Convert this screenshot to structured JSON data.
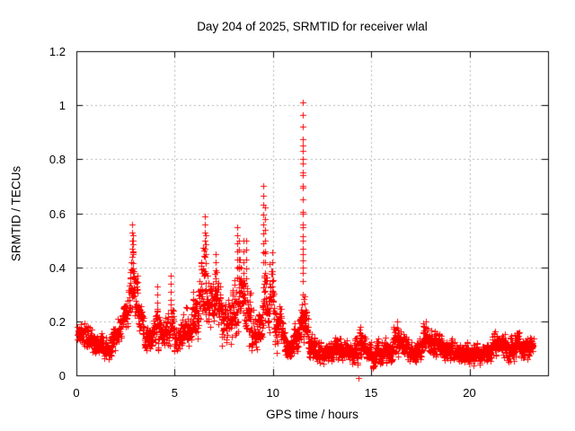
{
  "chart_data": {
    "type": "scatter",
    "title": "Day 204 of 2025, SRMTID for receiver wlal",
    "xlabel": "GPS time / hours",
    "ylabel": "SRMTID / TECUs",
    "xlim": [
      0,
      24
    ],
    "ylim": [
      0,
      1.2
    ],
    "xticks": [
      {
        "label": "0",
        "v": 0
      },
      {
        "label": "5",
        "v": 5
      },
      {
        "label": "10",
        "v": 10
      },
      {
        "label": "15",
        "v": 15
      },
      {
        "label": "20",
        "v": 20
      }
    ],
    "yticks": [
      {
        "label": "0",
        "v": 0
      },
      {
        "label": "0.2",
        "v": 0.2
      },
      {
        "label": "0.4",
        "v": 0.4
      },
      {
        "label": "0.6",
        "v": 0.6
      },
      {
        "label": "0.8",
        "v": 0.8
      },
      {
        "label": "1",
        "v": 1
      },
      {
        "label": "1.2",
        "v": 1.2
      }
    ],
    "grid": true,
    "legend": "none",
    "marker": "+",
    "colors": {
      "points": "#ff0000",
      "grid": "#b3b3b3",
      "axis": "#000000",
      "background": "#ffffff",
      "text": "#000000"
    },
    "sampling": {
      "samples_per_hour": 120,
      "time_start": 0.05,
      "time_end": 23.25,
      "seed": 2025204
    },
    "band_envelope": [
      [
        0.0,
        0.17,
        0.045
      ],
      [
        0.3,
        0.16,
        0.05
      ],
      [
        0.7,
        0.13,
        0.05
      ],
      [
        1.0,
        0.11,
        0.045
      ],
      [
        1.3,
        0.13,
        0.05
      ],
      [
        1.6,
        0.09,
        0.04
      ],
      [
        1.9,
        0.13,
        0.055
      ],
      [
        2.2,
        0.17,
        0.06
      ],
      [
        2.5,
        0.21,
        0.07
      ],
      [
        2.75,
        0.3,
        0.12
      ],
      [
        2.9,
        0.36,
        0.16
      ],
      [
        3.05,
        0.27,
        0.1
      ],
      [
        3.3,
        0.21,
        0.07
      ],
      [
        3.6,
        0.14,
        0.05
      ],
      [
        3.9,
        0.15,
        0.055
      ],
      [
        4.1,
        0.19,
        0.09
      ],
      [
        4.35,
        0.14,
        0.05
      ],
      [
        4.6,
        0.16,
        0.07
      ],
      [
        4.8,
        0.24,
        0.11
      ],
      [
        5.0,
        0.16,
        0.07
      ],
      [
        5.25,
        0.13,
        0.05
      ],
      [
        5.5,
        0.19,
        0.09
      ],
      [
        5.75,
        0.15,
        0.06
      ],
      [
        5.95,
        0.2,
        0.09
      ],
      [
        6.2,
        0.24,
        0.1
      ],
      [
        6.5,
        0.34,
        0.17
      ],
      [
        6.7,
        0.3,
        0.12
      ],
      [
        6.9,
        0.3,
        0.11
      ],
      [
        7.1,
        0.28,
        0.13
      ],
      [
        7.35,
        0.23,
        0.1
      ],
      [
        7.6,
        0.2,
        0.09
      ],
      [
        7.85,
        0.21,
        0.1
      ],
      [
        8.1,
        0.28,
        0.14
      ],
      [
        8.3,
        0.3,
        0.13
      ],
      [
        8.5,
        0.3,
        0.14
      ],
      [
        8.7,
        0.26,
        0.14
      ],
      [
        8.95,
        0.17,
        0.08
      ],
      [
        9.2,
        0.14,
        0.06
      ],
      [
        9.45,
        0.2,
        0.12
      ],
      [
        9.6,
        0.3,
        0.18
      ],
      [
        9.75,
        0.2,
        0.1
      ],
      [
        9.95,
        0.3,
        0.16
      ],
      [
        10.15,
        0.15,
        0.08
      ],
      [
        10.4,
        0.2,
        0.08
      ],
      [
        10.6,
        0.1,
        0.05
      ],
      [
        10.9,
        0.1,
        0.05
      ],
      [
        11.15,
        0.14,
        0.06
      ],
      [
        11.35,
        0.16,
        0.07
      ],
      [
        11.5,
        0.25,
        0.14
      ],
      [
        11.7,
        0.2,
        0.09
      ],
      [
        11.9,
        0.13,
        0.06
      ],
      [
        12.2,
        0.09,
        0.045
      ],
      [
        12.6,
        0.08,
        0.04
      ],
      [
        13.0,
        0.09,
        0.045
      ],
      [
        13.35,
        0.11,
        0.05
      ],
      [
        13.7,
        0.08,
        0.04
      ],
      [
        14.0,
        0.08,
        0.04
      ],
      [
        14.45,
        0.12,
        0.06
      ],
      [
        14.8,
        0.08,
        0.04
      ],
      [
        15.2,
        0.08,
        0.045
      ],
      [
        15.6,
        0.09,
        0.05
      ],
      [
        16.0,
        0.1,
        0.05
      ],
      [
        16.35,
        0.13,
        0.06
      ],
      [
        16.7,
        0.1,
        0.05
      ],
      [
        17.1,
        0.09,
        0.045
      ],
      [
        17.5,
        0.1,
        0.05
      ],
      [
        17.8,
        0.13,
        0.06
      ],
      [
        18.1,
        0.12,
        0.05
      ],
      [
        18.4,
        0.12,
        0.05
      ],
      [
        18.8,
        0.09,
        0.045
      ],
      [
        19.2,
        0.09,
        0.045
      ],
      [
        19.6,
        0.08,
        0.04
      ],
      [
        20.0,
        0.09,
        0.045
      ],
      [
        20.4,
        0.08,
        0.04
      ],
      [
        20.8,
        0.08,
        0.045
      ],
      [
        21.2,
        0.11,
        0.05
      ],
      [
        21.5,
        0.12,
        0.05
      ],
      [
        21.8,
        0.1,
        0.05
      ],
      [
        22.1,
        0.1,
        0.05
      ],
      [
        22.5,
        0.11,
        0.05
      ],
      [
        22.8,
        0.1,
        0.05
      ],
      [
        23.0,
        0.11,
        0.045
      ],
      [
        23.25,
        0.12,
        0.04
      ]
    ],
    "spike_columns": [
      [
        2.84,
        0.44,
        0.57,
        0.03
      ],
      [
        2.89,
        0.38,
        0.53,
        0.035
      ],
      [
        4.1,
        0.27,
        0.33,
        0.03
      ],
      [
        4.78,
        0.28,
        0.38,
        0.03
      ],
      [
        5.95,
        0.25,
        0.31,
        0.03
      ],
      [
        6.53,
        0.44,
        0.6,
        0.03
      ],
      [
        6.6,
        0.38,
        0.55,
        0.035
      ],
      [
        7.1,
        0.36,
        0.47,
        0.03
      ],
      [
        8.18,
        0.4,
        0.57,
        0.03
      ],
      [
        8.26,
        0.36,
        0.5,
        0.035
      ],
      [
        8.48,
        0.38,
        0.5,
        0.04
      ],
      [
        8.65,
        0.36,
        0.52,
        0.035
      ],
      [
        9.53,
        0.42,
        0.7,
        0.035
      ],
      [
        9.58,
        0.38,
        0.62,
        0.04
      ],
      [
        9.95,
        0.35,
        0.48,
        0.035
      ],
      [
        11.5,
        0.38,
        1.02,
        0.045
      ],
      [
        11.54,
        0.3,
        0.88,
        0.05
      ],
      [
        14.45,
        0.13,
        0.2,
        0.025
      ],
      [
        16.32,
        0.15,
        0.21,
        0.025
      ],
      [
        17.78,
        0.15,
        0.22,
        0.025
      ]
    ],
    "outlier_points": [
      [
        14.36,
        -0.01
      ]
    ]
  }
}
